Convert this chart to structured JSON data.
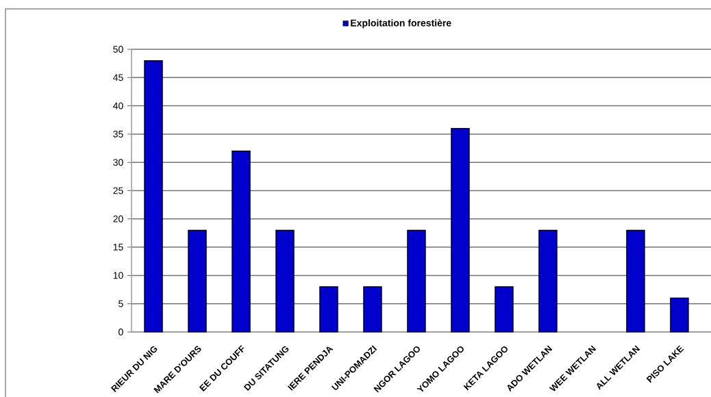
{
  "chart_data": {
    "type": "bar",
    "categories": [
      "RIEUR DU NIG",
      "MARE D'OURS",
      "EE DU COUFF",
      "DU SITATUNG",
      "IERE PENDJA",
      "UNI-POMADZI",
      "NGOR LAGOO",
      "YOMO LAGOO",
      "KETA LAGOO",
      "ADO WETLAN",
      "WEE WETLAN",
      "ALL WETLAN",
      "PISO LAKE"
    ],
    "series": [
      {
        "name": "Exploitation forestière",
        "color": "#0000cc",
        "values": [
          48,
          18,
          32,
          18,
          8,
          8,
          18,
          36,
          8,
          18,
          null,
          18,
          6
        ]
      }
    ],
    "ylim": [
      0,
      50
    ],
    "yticks": [
      0,
      5,
      10,
      15,
      20,
      25,
      30,
      35,
      40,
      45,
      50
    ],
    "grid": "y",
    "legend": "top"
  }
}
